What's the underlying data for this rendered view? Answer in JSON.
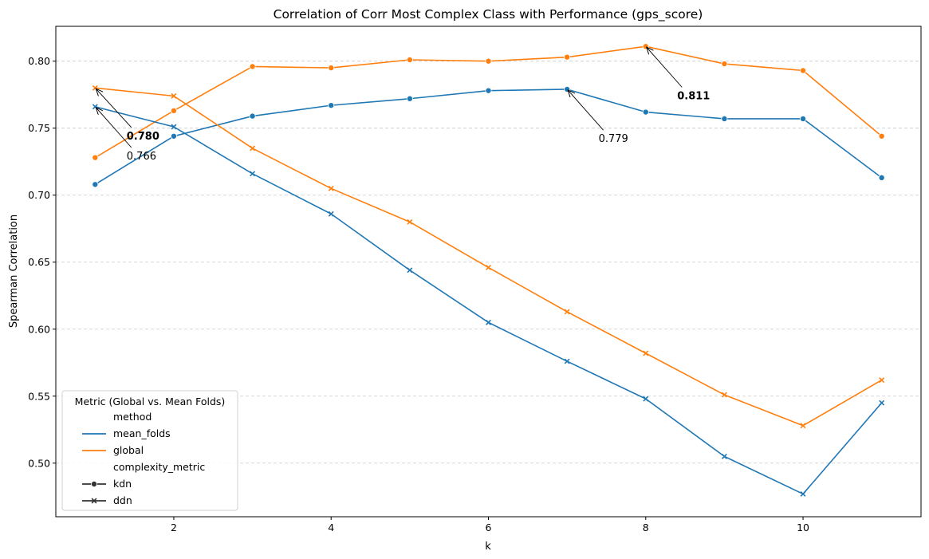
{
  "chart_data": {
    "type": "line",
    "title": "Correlation of Corr Most Complex Class with Performance (gps_score)",
    "xlabel": "k",
    "ylabel": "Spearman Correlation",
    "xlim": [
      0.5,
      11.5
    ],
    "ylim": [
      0.46,
      0.826
    ],
    "xticks": [
      2,
      4,
      6,
      8,
      10
    ],
    "xtick_labels": [
      "2",
      "4",
      "6",
      "8",
      "10"
    ],
    "yticks": [
      0.5,
      0.55,
      0.6,
      0.65,
      0.7,
      0.75,
      0.8
    ],
    "ytick_labels": [
      "0.50",
      "0.55",
      "0.60",
      "0.65",
      "0.70",
      "0.75",
      "0.80"
    ],
    "grid": "y-dashed",
    "x": [
      1,
      2,
      3,
      4,
      5,
      6,
      7,
      8,
      9,
      10,
      11
    ],
    "series": [
      {
        "method": "mean_folds",
        "complexity_metric": "kdn",
        "color": "#1f77b4",
        "marker": "circle",
        "values": [
          0.708,
          0.744,
          0.759,
          0.767,
          0.772,
          0.778,
          0.779,
          0.762,
          0.757,
          0.757,
          0.713
        ]
      },
      {
        "method": "global",
        "complexity_metric": "kdn",
        "color": "#ff7f0e",
        "marker": "circle",
        "values": [
          0.728,
          0.763,
          0.796,
          0.795,
          0.801,
          0.8,
          0.803,
          0.811,
          0.798,
          0.793,
          0.744
        ]
      },
      {
        "method": "mean_folds",
        "complexity_metric": "ddn",
        "color": "#1f77b4",
        "marker": "x",
        "values": [
          0.766,
          0.751,
          0.716,
          0.686,
          0.644,
          0.605,
          0.576,
          0.548,
          0.505,
          0.477,
          0.545
        ]
      },
      {
        "method": "global",
        "complexity_metric": "ddn",
        "color": "#ff7f0e",
        "marker": "x",
        "values": [
          0.78,
          0.774,
          0.735,
          0.705,
          0.68,
          0.646,
          0.613,
          0.582,
          0.551,
          0.528,
          0.562
        ]
      }
    ],
    "annotations": [
      {
        "text": "0.780",
        "bold": true,
        "x": 1,
        "y": 0.78,
        "text_x": 1.4,
        "text_y": 0.744
      },
      {
        "text": "0.766",
        "bold": false,
        "x": 1,
        "y": 0.766,
        "text_x": 1.4,
        "text_y": 0.729
      },
      {
        "text": "0.779",
        "bold": false,
        "x": 7,
        "y": 0.779,
        "text_x": 7.4,
        "text_y": 0.742
      },
      {
        "text": "0.811",
        "bold": true,
        "x": 8,
        "y": 0.811,
        "text_x": 8.4,
        "text_y": 0.774
      }
    ],
    "legend": {
      "placement": "lower-left",
      "title": "Metric (Global vs. Mean Folds)",
      "items": [
        {
          "label": "method",
          "kind": "header"
        },
        {
          "label": "mean_folds",
          "kind": "line",
          "color": "#1f77b4"
        },
        {
          "label": "global",
          "kind": "line",
          "color": "#ff7f0e"
        },
        {
          "label": "complexity_metric",
          "kind": "header"
        },
        {
          "label": "kdn",
          "kind": "marker",
          "marker": "circle",
          "color": "#333333"
        },
        {
          "label": "ddn",
          "kind": "marker",
          "marker": "x",
          "color": "#333333"
        }
      ]
    }
  }
}
